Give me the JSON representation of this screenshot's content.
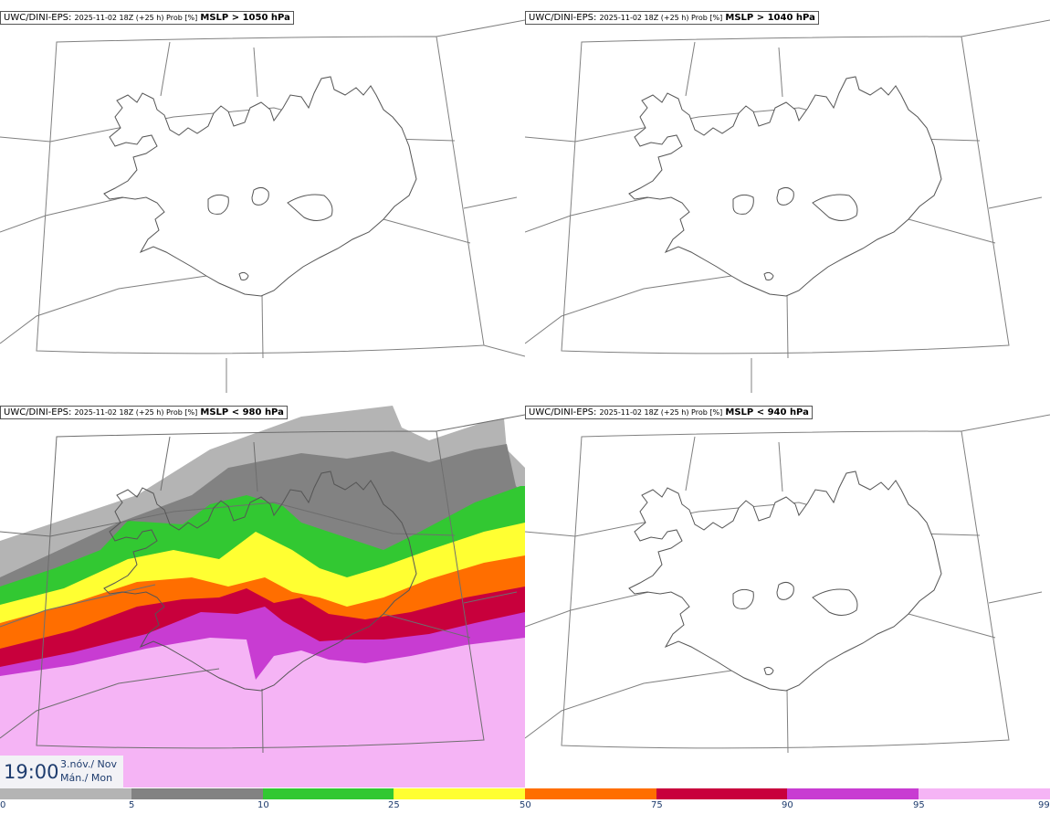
{
  "panels": [
    {
      "model": "UWC/DINI-EPS",
      "run": "2025-11-02 18Z (+25 h) Prob [%]",
      "param": "MSLP > 1050 hPa"
    },
    {
      "model": "UWC/DINI-EPS",
      "run": "2025-11-02 18Z (+25 h) Prob [%]",
      "param": "MSLP > 1040 hPa"
    },
    {
      "model": "UWC/DINI-EPS",
      "run": "2025-11-02 18Z (+25 h) Prob [%]",
      "param": "MSLP < 980 hPa"
    },
    {
      "model": "UWC/DINI-EPS",
      "run": "2025-11-02 18Z (+25 h) Prob [%]",
      "param": "MSLP < 940 hPa"
    }
  ],
  "valid": {
    "time": "19:00",
    "date_line1": "3.nóv./ Nov",
    "date_line2": "Mán./ Mon"
  },
  "legend": {
    "ticks": [
      "0",
      "5",
      "10",
      "25",
      "50",
      "75",
      "90",
      "95",
      "99"
    ],
    "colors": [
      "#ffffff",
      "#b4b4b4",
      "#828282",
      "#32c832",
      "#ffff32",
      "#ff6e00",
      "#c8003c",
      "#c83cd2",
      "#f5b4f5"
    ]
  },
  "map": {
    "region": "Iceland"
  }
}
